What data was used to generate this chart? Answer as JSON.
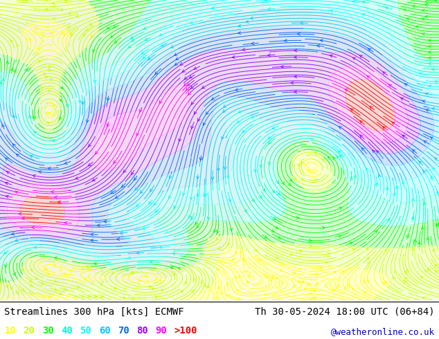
{
  "title_left": "Streamlines 300 hPa [kts] ECMWF",
  "title_right": "Th 30-05-2024 18:00 UTC (06+84)",
  "credit": "@weatheronline.co.uk",
  "legend_values": [
    "10",
    "20",
    "30",
    "40",
    "50",
    "60",
    "70",
    "80",
    "90",
    ">100"
  ],
  "legend_colors": [
    "#ffff00",
    "#c8ff00",
    "#00ff00",
    "#00ffc8",
    "#00ffff",
    "#00c8ff",
    "#0064ff",
    "#9600ff",
    "#ff00ff",
    "#ff0000"
  ],
  "bg_color": "#ffffff",
  "map_bg": "#c8f0a0",
  "title_fontsize": 10,
  "credit_fontsize": 9,
  "legend_fontsize": 10,
  "bounds": [
    0,
    10,
    20,
    30,
    40,
    50,
    60,
    70,
    80,
    90,
    120
  ],
  "hex_colors": [
    "#ffff00",
    "#c8ff00",
    "#00ff00",
    "#00ffc8",
    "#00ffff",
    "#00c8ff",
    "#0064ff",
    "#9600ff",
    "#ff00ff",
    "#ff0000"
  ]
}
